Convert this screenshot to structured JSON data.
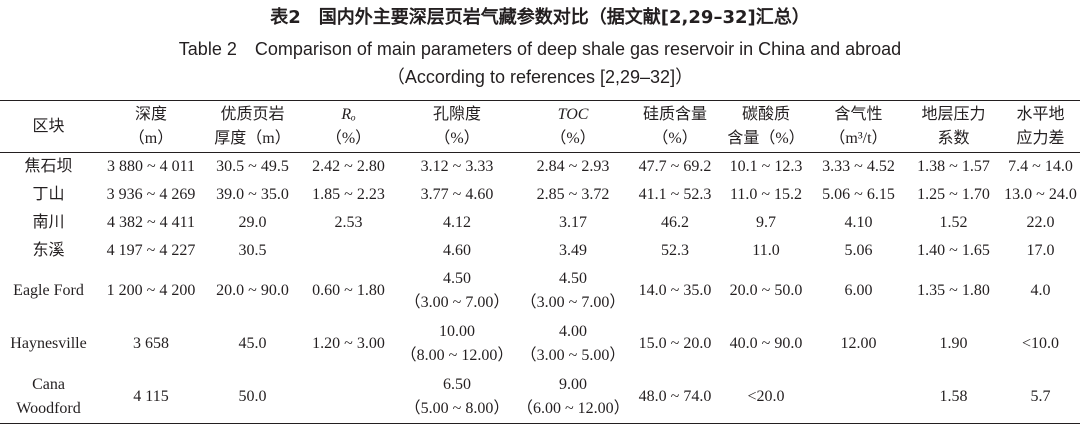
{
  "title_cn": "表2　国内外主要深层页岩气藏参数对比（据文献[2,29–32]汇总）",
  "title_en": [
    "Table 2　Comparison of main parameters of deep shale gas reservoir in China and abroad",
    "（According to references [2,29–32]）"
  ],
  "table": {
    "header": [
      [
        "区块"
      ],
      [
        "深度",
        "（m）"
      ],
      [
        "优质页岩",
        "厚度（m）"
      ],
      [
        "Rₒ",
        "（%）"
      ],
      [
        "孔隙度",
        "（%）"
      ],
      [
        "TOC",
        "（%）"
      ],
      [
        "硅质含量",
        "（%）"
      ],
      [
        "碳酸质",
        "含量（%）"
      ],
      [
        "含气性",
        "（m³/t）"
      ],
      [
        "地层压力",
        "系数"
      ],
      [
        "水平地",
        "应力差"
      ]
    ],
    "rows": [
      [
        [
          "焦石坝"
        ],
        [
          "3 880 ~ 4 011"
        ],
        [
          "30.5 ~ 49.5"
        ],
        [
          "2.42 ~ 2.80"
        ],
        [
          "3.12 ~ 3.33"
        ],
        [
          "2.84 ~ 2.93"
        ],
        [
          "47.7 ~ 69.2"
        ],
        [
          "10.1 ~ 12.3"
        ],
        [
          "3.33 ~ 4.52"
        ],
        [
          "1.38 ~ 1.57"
        ],
        [
          "7.4 ~ 14.0"
        ]
      ],
      [
        [
          "丁山"
        ],
        [
          "3 936 ~ 4 269"
        ],
        [
          "39.0 ~ 35.0"
        ],
        [
          "1.85 ~ 2.23"
        ],
        [
          "3.77 ~ 4.60"
        ],
        [
          "2.85 ~ 3.72"
        ],
        [
          "41.1 ~ 52.3"
        ],
        [
          "11.0 ~ 15.2"
        ],
        [
          "5.06 ~ 6.15"
        ],
        [
          "1.25 ~ 1.70"
        ],
        [
          "13.0 ~ 24.0"
        ]
      ],
      [
        [
          "南川"
        ],
        [
          "4 382 ~ 4 411"
        ],
        [
          "29.0"
        ],
        [
          "2.53"
        ],
        [
          "4.12"
        ],
        [
          "3.17"
        ],
        [
          "46.2"
        ],
        [
          "9.7"
        ],
        [
          "4.10"
        ],
        [
          "1.52"
        ],
        [
          "22.0"
        ]
      ],
      [
        [
          "东溪"
        ],
        [
          "4 197 ~ 4 227"
        ],
        [
          "30.5"
        ],
        null,
        [
          "4.60"
        ],
        [
          "3.49"
        ],
        [
          "52.3"
        ],
        [
          "11.0"
        ],
        [
          "5.06"
        ],
        [
          "1.40 ~ 1.65"
        ],
        [
          "17.0"
        ]
      ],
      [
        [
          "Eagle Ford"
        ],
        [
          "1 200 ~ 4 200"
        ],
        [
          "20.0 ~ 90.0"
        ],
        [
          "0.60 ~ 1.80"
        ],
        [
          "4.50",
          "（3.00 ~ 7.00）"
        ],
        [
          "4.50",
          "（3.00 ~ 7.00）"
        ],
        [
          "14.0 ~ 35.0"
        ],
        [
          "20.0 ~ 50.0"
        ],
        [
          "6.00"
        ],
        [
          "1.35 ~ 1.80"
        ],
        [
          "4.0"
        ]
      ],
      [
        [
          "Haynesville"
        ],
        [
          "3 658"
        ],
        [
          "45.0"
        ],
        [
          "1.20 ~ 3.00"
        ],
        [
          "10.00",
          "（8.00 ~ 12.00）"
        ],
        [
          "4.00",
          "（3.00 ~ 5.00）"
        ],
        [
          "15.0 ~ 20.0"
        ],
        [
          "40.0 ~ 90.0"
        ],
        [
          "12.00"
        ],
        [
          "1.90"
        ],
        [
          "<10.0"
        ]
      ],
      [
        [
          "Cana",
          "Woodford"
        ],
        [
          "4 115"
        ],
        [
          "50.0"
        ],
        null,
        [
          "6.50",
          "（5.00 ~ 8.00）"
        ],
        [
          "9.00",
          "（6.00 ~ 12.00）"
        ],
        [
          "48.0 ~ 74.0"
        ],
        [
          "<20.0"
        ],
        null,
        [
          "1.58"
        ],
        [
          "5.7"
        ]
      ]
    ]
  }
}
